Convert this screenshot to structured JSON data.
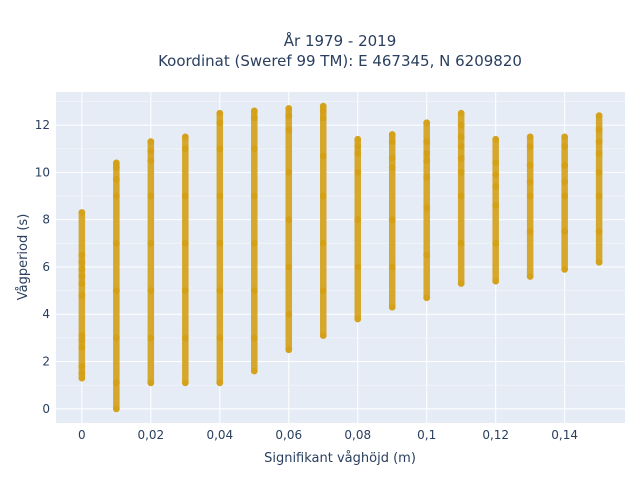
{
  "chart_data": {
    "type": "scatter",
    "title_lines": [
      "År 1979 - 2019",
      "Koordinat (Sweref 99 TM): E 467345, N 6209820"
    ],
    "xlabel": "Signifikant våghöjd (m)",
    "ylabel": "Vågperiod (s)",
    "xlim": [
      -0.0075,
      0.1575
    ],
    "ylim": [
      -0.6,
      13.4
    ],
    "grid": true,
    "legend": "none",
    "x_ticks": [
      {
        "value": 0,
        "label": "0"
      },
      {
        "value": 0.02,
        "label": "0,02"
      },
      {
        "value": 0.04,
        "label": "0,04"
      },
      {
        "value": 0.06,
        "label": "0,06"
      },
      {
        "value": 0.08,
        "label": "0,08"
      },
      {
        "value": 0.1,
        "label": "0,1"
      },
      {
        "value": 0.12,
        "label": "0,12"
      },
      {
        "value": 0.14,
        "label": "0,14"
      }
    ],
    "y_ticks": [
      {
        "value": 0,
        "label": "0"
      },
      {
        "value": 2,
        "label": "2"
      },
      {
        "value": 4,
        "label": "4"
      },
      {
        "value": 6,
        "label": "6"
      },
      {
        "value": 8,
        "label": "8"
      },
      {
        "value": 10,
        "label": "10"
      },
      {
        "value": 12,
        "label": "12"
      }
    ],
    "series": [
      {
        "color": "#d4a018",
        "points": [
          {
            "x": 0,
            "y": 1.3
          },
          {
            "x": 0,
            "y": 1.5
          },
          {
            "x": 0,
            "y": 1.8
          },
          {
            "x": 0,
            "y": 2.6
          },
          {
            "x": 0,
            "y": 2.9
          },
          {
            "x": 0,
            "y": 3.1
          },
          {
            "x": 0,
            "y": 4.8
          },
          {
            "x": 0,
            "y": 5.3
          },
          {
            "x": 0,
            "y": 5.6
          },
          {
            "x": 0,
            "y": 5.9
          },
          {
            "x": 0,
            "y": 6.2
          },
          {
            "x": 0,
            "y": 6.5
          },
          {
            "x": 0,
            "y": 8.3
          },
          {
            "x": 0.01,
            "y": 0
          },
          {
            "x": 0.01,
            "y": 1.1
          },
          {
            "x": 0.01,
            "y": 3
          },
          {
            "x": 0.01,
            "y": 5
          },
          {
            "x": 0.01,
            "y": 7
          },
          {
            "x": 0.01,
            "y": 9
          },
          {
            "x": 0.01,
            "y": 9.7
          },
          {
            "x": 0.01,
            "y": 10.2
          },
          {
            "x": 0.01,
            "y": 10.4
          },
          {
            "x": 0.02,
            "y": 1.1
          },
          {
            "x": 0.02,
            "y": 3
          },
          {
            "x": 0.02,
            "y": 5
          },
          {
            "x": 0.02,
            "y": 7
          },
          {
            "x": 0.02,
            "y": 9
          },
          {
            "x": 0.02,
            "y": 10.5
          },
          {
            "x": 0.02,
            "y": 10.9
          },
          {
            "x": 0.02,
            "y": 11.3
          },
          {
            "x": 0.03,
            "y": 1.1
          },
          {
            "x": 0.03,
            "y": 3
          },
          {
            "x": 0.03,
            "y": 5
          },
          {
            "x": 0.03,
            "y": 7
          },
          {
            "x": 0.03,
            "y": 9
          },
          {
            "x": 0.03,
            "y": 11
          },
          {
            "x": 0.03,
            "y": 11.5
          },
          {
            "x": 0.04,
            "y": 1.1
          },
          {
            "x": 0.04,
            "y": 3
          },
          {
            "x": 0.04,
            "y": 5
          },
          {
            "x": 0.04,
            "y": 7
          },
          {
            "x": 0.04,
            "y": 9
          },
          {
            "x": 0.04,
            "y": 11
          },
          {
            "x": 0.04,
            "y": 12.1
          },
          {
            "x": 0.04,
            "y": 12.5
          },
          {
            "x": 0.05,
            "y": 1.6
          },
          {
            "x": 0.05,
            "y": 3
          },
          {
            "x": 0.05,
            "y": 5
          },
          {
            "x": 0.05,
            "y": 7
          },
          {
            "x": 0.05,
            "y": 9
          },
          {
            "x": 0.05,
            "y": 11
          },
          {
            "x": 0.05,
            "y": 12.3
          },
          {
            "x": 0.05,
            "y": 12.6
          },
          {
            "x": 0.06,
            "y": 2.5
          },
          {
            "x": 0.06,
            "y": 4
          },
          {
            "x": 0.06,
            "y": 6
          },
          {
            "x": 0.06,
            "y": 8
          },
          {
            "x": 0.06,
            "y": 10
          },
          {
            "x": 0.06,
            "y": 11.8
          },
          {
            "x": 0.06,
            "y": 12.4
          },
          {
            "x": 0.06,
            "y": 12.7
          },
          {
            "x": 0.07,
            "y": 3.1
          },
          {
            "x": 0.07,
            "y": 5
          },
          {
            "x": 0.07,
            "y": 7
          },
          {
            "x": 0.07,
            "y": 9
          },
          {
            "x": 0.07,
            "y": 10.7
          },
          {
            "x": 0.07,
            "y": 12.3
          },
          {
            "x": 0.07,
            "y": 12.6
          },
          {
            "x": 0.07,
            "y": 12.8
          },
          {
            "x": 0.08,
            "y": 3.8
          },
          {
            "x": 0.08,
            "y": 6
          },
          {
            "x": 0.08,
            "y": 8
          },
          {
            "x": 0.08,
            "y": 10
          },
          {
            "x": 0.08,
            "y": 10.8
          },
          {
            "x": 0.08,
            "y": 11.1
          },
          {
            "x": 0.08,
            "y": 11.4
          },
          {
            "x": 0.09,
            "y": 4.3
          },
          {
            "x": 0.09,
            "y": 6
          },
          {
            "x": 0.09,
            "y": 8
          },
          {
            "x": 0.09,
            "y": 10.2
          },
          {
            "x": 0.09,
            "y": 10.6
          },
          {
            "x": 0.09,
            "y": 11.3
          },
          {
            "x": 0.09,
            "y": 11.6
          },
          {
            "x": 0.1,
            "y": 4.7
          },
          {
            "x": 0.1,
            "y": 6.5
          },
          {
            "x": 0.1,
            "y": 8.5
          },
          {
            "x": 0.1,
            "y": 9.8
          },
          {
            "x": 0.1,
            "y": 10.5
          },
          {
            "x": 0.1,
            "y": 10.8
          },
          {
            "x": 0.1,
            "y": 11.3
          },
          {
            "x": 0.1,
            "y": 12.1
          },
          {
            "x": 0.11,
            "y": 5.3
          },
          {
            "x": 0.11,
            "y": 7
          },
          {
            "x": 0.11,
            "y": 9
          },
          {
            "x": 0.11,
            "y": 10
          },
          {
            "x": 0.11,
            "y": 10.6
          },
          {
            "x": 0.11,
            "y": 11.1
          },
          {
            "x": 0.11,
            "y": 11.5
          },
          {
            "x": 0.11,
            "y": 12
          },
          {
            "x": 0.11,
            "y": 12.5
          },
          {
            "x": 0.12,
            "y": 5.4
          },
          {
            "x": 0.12,
            "y": 7
          },
          {
            "x": 0.12,
            "y": 8.6
          },
          {
            "x": 0.12,
            "y": 9.4
          },
          {
            "x": 0.12,
            "y": 9.9
          },
          {
            "x": 0.12,
            "y": 10.4
          },
          {
            "x": 0.12,
            "y": 11.4
          },
          {
            "x": 0.13,
            "y": 5.6
          },
          {
            "x": 0.13,
            "y": 7.5
          },
          {
            "x": 0.13,
            "y": 9
          },
          {
            "x": 0.13,
            "y": 9.6
          },
          {
            "x": 0.13,
            "y": 10.3
          },
          {
            "x": 0.13,
            "y": 11.1
          },
          {
            "x": 0.13,
            "y": 11.5
          },
          {
            "x": 0.14,
            "y": 5.9
          },
          {
            "x": 0.14,
            "y": 7.5
          },
          {
            "x": 0.14,
            "y": 9
          },
          {
            "x": 0.14,
            "y": 9.6
          },
          {
            "x": 0.14,
            "y": 10.3
          },
          {
            "x": 0.14,
            "y": 11.1
          },
          {
            "x": 0.14,
            "y": 11.5
          },
          {
            "x": 0.15,
            "y": 6.2
          },
          {
            "x": 0.15,
            "y": 7.5
          },
          {
            "x": 0.15,
            "y": 9
          },
          {
            "x": 0.15,
            "y": 10
          },
          {
            "x": 0.15,
            "y": 10.8
          },
          {
            "x": 0.15,
            "y": 11.3
          },
          {
            "x": 0.15,
            "y": 11.8
          },
          {
            "x": 0.15,
            "y": 12.4
          }
        ]
      }
    ]
  }
}
